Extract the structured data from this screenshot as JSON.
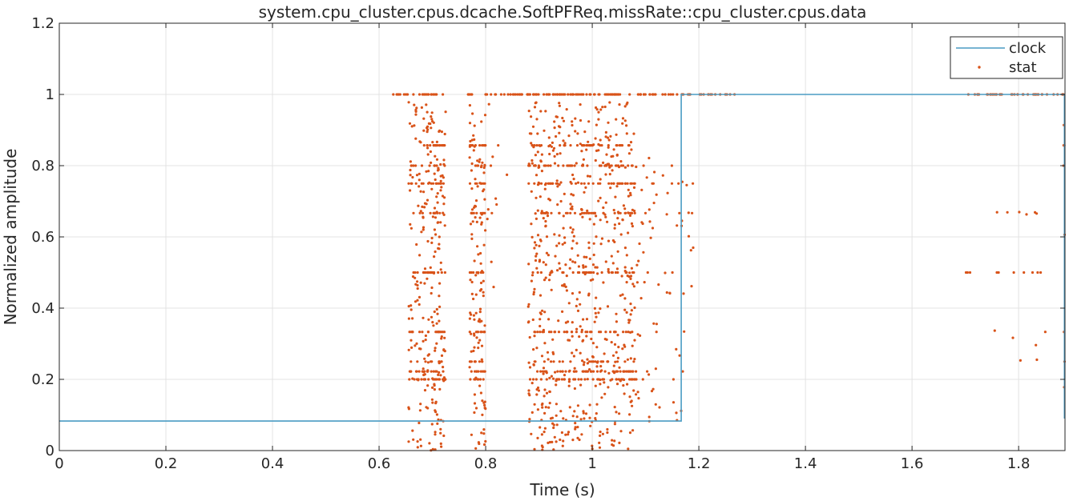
{
  "chart_data": {
    "type": "line+scatter",
    "title": "system.cpu_cluster.cpus.dcache.SoftPFReq.missRate::cpu_cluster.cpus.data",
    "xlabel": "Time (s)",
    "ylabel": "Normalized amplitude",
    "xlim": [
      0,
      1.887
    ],
    "ylim": [
      0,
      1.2
    ],
    "xticks": [
      0,
      0.2,
      0.4,
      0.6,
      0.8,
      1,
      1.2,
      1.4,
      1.6,
      1.8
    ],
    "xtick_labels": [
      "0",
      "0.2",
      "0.4",
      "0.6",
      "0.8",
      "1",
      "1.2",
      "1.4",
      "1.6",
      "1.8"
    ],
    "yticks": [
      0,
      0.2,
      0.4,
      0.6,
      0.8,
      1,
      1.2
    ],
    "ytick_labels": [
      "0",
      "0.2",
      "0.4",
      "0.6",
      "0.8",
      "1",
      "1.2"
    ],
    "grid": true,
    "legend": {
      "position": "top-right",
      "entries": [
        "clock",
        "stat"
      ]
    },
    "series": [
      {
        "name": "clock",
        "style": "line",
        "color": "#4a9cc4",
        "x": [
          0,
          1.167,
          1.167,
          1.886,
          1.886
        ],
        "y": [
          0.083,
          0.083,
          1.0,
          1.0,
          0.09
        ]
      },
      {
        "name": "stat",
        "style": "dots",
        "color": "#d95319",
        "clusters": [
          {
            "x": [
              0.615,
              0.72
            ],
            "y": [
              1.0,
              1.0
            ],
            "n": 24
          },
          {
            "x": [
              0.765,
              1.17
            ],
            "y": [
              1.0,
              1.0
            ],
            "n": 120
          },
          {
            "x": [
              1.17,
              1.27
            ],
            "y": [
              1.0,
              1.0
            ],
            "n": 18
          },
          {
            "x": [
              1.7,
              1.887
            ],
            "y": [
              1.0,
              1.0
            ],
            "n": 40
          },
          {
            "x": [
              0.655,
              0.69
            ],
            "y": [
              0.0,
              0.98
            ],
            "n": 140
          },
          {
            "x": [
              0.69,
              0.725
            ],
            "y": [
              0.0,
              0.98
            ],
            "n": 230
          },
          {
            "x": [
              0.77,
              0.8
            ],
            "y": [
              0.0,
              0.98
            ],
            "n": 190
          },
          {
            "x": [
              0.8,
              0.84
            ],
            "y": [
              0.4,
              0.98
            ],
            "n": 12
          },
          {
            "x": [
              0.88,
              1.08
            ],
            "y": [
              0.0,
              0.98
            ],
            "n": 900
          },
          {
            "x": [
              1.08,
              1.17
            ],
            "y": [
              0.08,
              0.85
            ],
            "n": 70
          },
          {
            "x": [
              1.17,
              1.19
            ],
            "y": [
              0.2,
              0.85
            ],
            "n": 10
          },
          {
            "x": [
              1.74,
              1.84
            ],
            "y": [
              0.66,
              0.67
            ],
            "n": 6
          },
          {
            "x": [
              1.7,
              1.85
            ],
            "y": [
              0.5,
              0.5
            ],
            "n": 10
          },
          {
            "x": [
              1.75,
              1.85
            ],
            "y": [
              0.25,
              0.34
            ],
            "n": 6
          },
          {
            "x": [
              1.884,
              1.887
            ],
            "y": [
              0.08,
              0.95
            ],
            "n": 8
          }
        ],
        "levels": [
          0.5,
          0.6667,
          0.75,
          0.8,
          0.8571,
          0.3333,
          0.25,
          0.2,
          0.2222
        ]
      }
    ]
  }
}
